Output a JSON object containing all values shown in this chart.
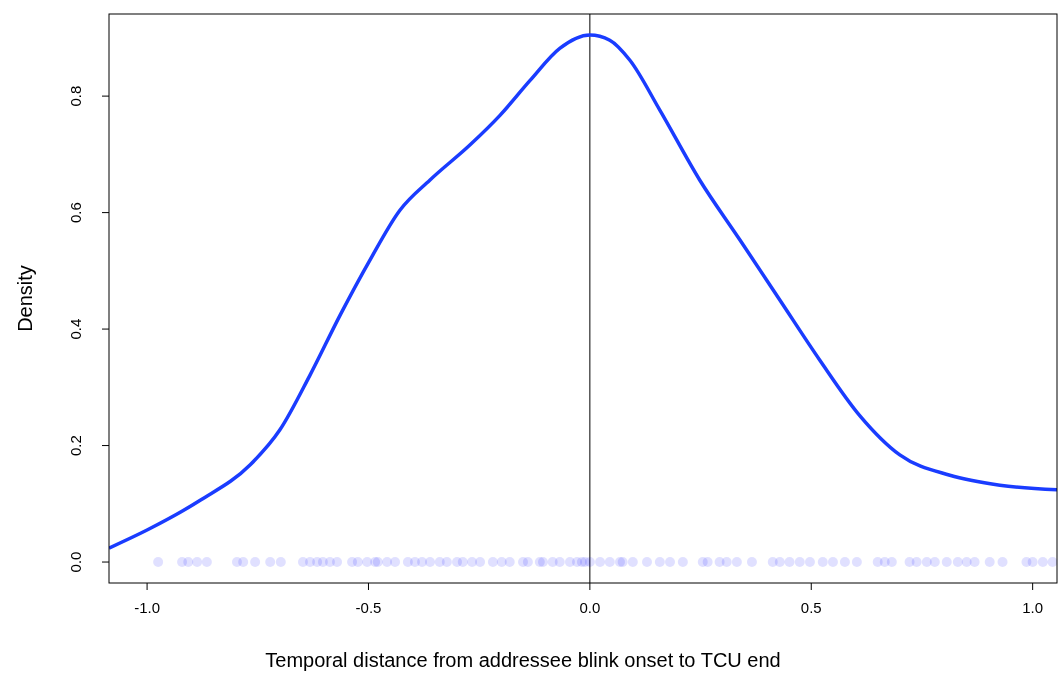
{
  "chart_data": {
    "type": "line",
    "xlabel": "Temporal distance from addressee blink onset to TCU end",
    "ylabel": "Density",
    "xlim": [
      -1.086,
      1.055
    ],
    "ylim": [
      -0.036,
      0.941
    ],
    "xticks": [
      {
        "value": -1,
        "label": "-1.0"
      },
      {
        "value": -0.5,
        "label": "-0.5"
      },
      {
        "value": 0,
        "label": "0.0"
      },
      {
        "value": 0.5,
        "label": "0.5"
      },
      {
        "value": 1,
        "label": "1.0"
      }
    ],
    "yticks": [
      {
        "value": 0,
        "label": "0.0"
      },
      {
        "value": 0.2,
        "label": "0.2"
      },
      {
        "value": 0.4,
        "label": "0.4"
      },
      {
        "value": 0.6,
        "label": "0.6"
      },
      {
        "value": 0.8,
        "label": "0.8"
      }
    ],
    "grid": false,
    "ref_lines": [
      {
        "axis": "x",
        "value": 0,
        "color": "#000000"
      }
    ],
    "series": [
      {
        "color": "#1a3cff",
        "marker": "none",
        "x": [
          -1.086,
          -1.0,
          -0.88,
          -0.767,
          -0.7,
          -0.632,
          -0.564,
          -0.497,
          -0.429,
          -0.361,
          -0.271,
          -0.203,
          -0.135,
          -0.068,
          0,
          0.045,
          0.09,
          0.158,
          0.248,
          0.339,
          0.429,
          0.519,
          0.609,
          0.7,
          0.813,
          0.926,
          1.055
        ],
        "values": [
          0.024,
          0.055,
          0.106,
          0.167,
          0.227,
          0.321,
          0.424,
          0.518,
          0.604,
          0.656,
          0.716,
          0.767,
          0.827,
          0.882,
          0.905,
          0.896,
          0.862,
          0.776,
          0.656,
          0.553,
          0.45,
          0.347,
          0.252,
          0.184,
          0.149,
          0.132,
          0.124
        ]
      },
      {
        "type": "scatter",
        "color": "#0000ff",
        "marker": "circle",
        "x": [
          -0.975,
          -0.921,
          -0.907,
          -0.887,
          -0.865,
          -0.797,
          -0.783,
          -0.756,
          -0.722,
          -0.698,
          -0.648,
          -0.632,
          -0.616,
          -0.603,
          -0.587,
          -0.571,
          -0.537,
          -0.524,
          -0.503,
          -0.485,
          -0.479,
          -0.458,
          -0.44,
          -0.411,
          -0.395,
          -0.379,
          -0.361,
          -0.339,
          -0.323,
          -0.3,
          -0.287,
          -0.266,
          -0.248,
          -0.219,
          -0.199,
          -0.181,
          -0.151,
          -0.14,
          -0.113,
          -0.106,
          -0.084,
          -0.068,
          -0.045,
          -0.029,
          -0.018,
          -0.011,
          0,
          0.023,
          0.045,
          0.068,
          0.074,
          0.097,
          0.129,
          0.158,
          0.181,
          0.21,
          0.255,
          0.266,
          0.293,
          0.309,
          0.332,
          0.366,
          0.413,
          0.429,
          0.451,
          0.474,
          0.497,
          0.526,
          0.549,
          0.576,
          0.603,
          0.65,
          0.666,
          0.682,
          0.722,
          0.738,
          0.761,
          0.779,
          0.806,
          0.831,
          0.851,
          0.869,
          0.903,
          0.932,
          0.986,
          1.0,
          1.023,
          1.045
        ],
        "values": [
          0,
          0,
          0,
          0,
          0,
          0,
          0,
          0,
          0,
          0,
          0,
          0,
          0,
          0,
          0,
          0,
          0,
          0,
          0,
          0,
          0,
          0,
          0,
          0,
          0,
          0,
          0,
          0,
          0,
          0,
          0,
          0,
          0,
          0,
          0,
          0,
          0,
          0,
          0,
          0,
          0,
          0,
          0,
          0,
          0,
          0,
          0,
          0,
          0,
          0,
          0,
          0,
          0,
          0,
          0,
          0,
          0,
          0,
          0,
          0,
          0,
          0,
          0,
          0,
          0,
          0,
          0,
          0,
          0,
          0,
          0,
          0,
          0,
          0,
          0,
          0,
          0,
          0,
          0,
          0,
          0,
          0,
          0,
          0,
          0,
          0,
          0,
          0
        ]
      }
    ]
  }
}
